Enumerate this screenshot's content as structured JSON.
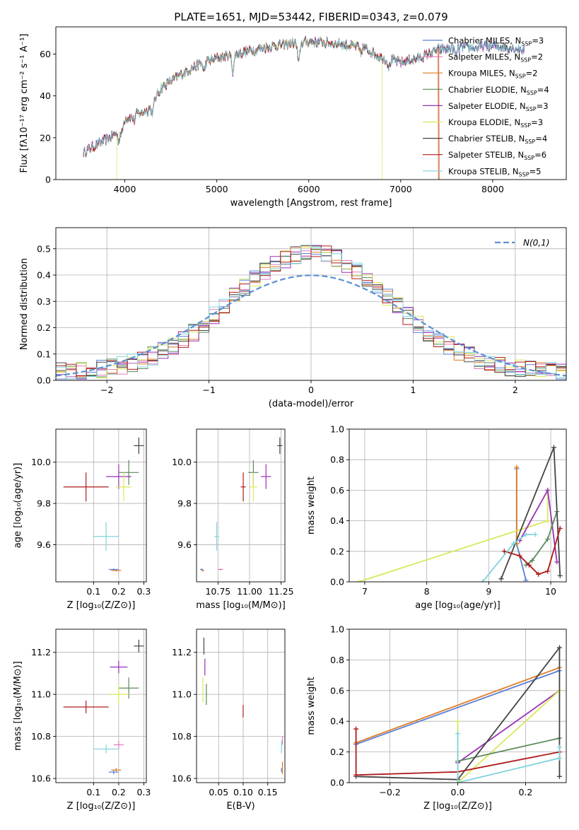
{
  "figure_title": "PLATE=1651, MJD=53442, FIBERID=0343, z=0.079",
  "colors": {
    "Chabrier MILES": "#5b7fd6",
    "Salpeter MILES": "#e07bbb",
    "Kroupa MILES": "#e07a1f",
    "Chabrier ELODIE": "#5a8a5a",
    "Salpeter ELODIE": "#9b2fb5",
    "Kroupa ELODIE": "#d8e85a",
    "Chabrier STELIB": "#444444",
    "Salpeter STELIB": "#b01a1a",
    "Kroupa STELIB": "#7fd3dd",
    "normal": "#5b8fd6"
  },
  "chart_data": [
    {
      "id": "spectrum",
      "type": "line",
      "xlabel": "wavelength [Angstrom, rest frame]",
      "ylabel": "Flux [fλ10⁻¹⁷ erg cm⁻² s⁻¹ A⁻¹]",
      "xlim": [
        3250,
        8800
      ],
      "ylim": [
        0,
        73
      ],
      "xticks": [
        4000,
        5000,
        6000,
        7000,
        8000
      ],
      "yticks": [
        0,
        20,
        40,
        60
      ],
      "grid": false,
      "legend_position": "right",
      "legend": [
        {
          "name": "Chabrier MILES",
          "label": "Chabrier MILES, N",
          "sub": "SSP",
          "n": "=3"
        },
        {
          "name": "Salpeter MILES",
          "label": "Salpeter MILES, N",
          "sub": "SSP",
          "n": "=2"
        },
        {
          "name": "Kroupa MILES",
          "label": "Kroupa MILES, N",
          "sub": "SSP",
          "n": "=2"
        },
        {
          "name": "Chabrier ELODIE",
          "label": "Chabrier ELODIE, N",
          "sub": "SSP",
          "n": "=4"
        },
        {
          "name": "Salpeter ELODIE",
          "label": "Salpeter ELODIE, N",
          "sub": "SSP",
          "n": "=3"
        },
        {
          "name": "Kroupa ELODIE",
          "label": "Kroupa ELODIE, N",
          "sub": "SSP",
          "n": "=3"
        },
        {
          "name": "Chabrier STELIB",
          "label": "Chabrier STELIB, N",
          "sub": "SSP",
          "n": "=4"
        },
        {
          "name": "Salpeter STELIB",
          "label": "Salpeter STELIB, N",
          "sub": "SSP",
          "n": "=6"
        },
        {
          "name": "Kroupa STELIB",
          "label": "Kroupa STELIB, N",
          "sub": "SSP",
          "n": "=5"
        }
      ],
      "continuum": [
        [
          3550,
          13
        ],
        [
          3700,
          17
        ],
        [
          3800,
          19
        ],
        [
          3900,
          22
        ],
        [
          3950,
          26
        ],
        [
          4000,
          29
        ],
        [
          4100,
          31
        ],
        [
          4250,
          33
        ],
        [
          4400,
          44
        ],
        [
          4600,
          50
        ],
        [
          4800,
          55
        ],
        [
          5000,
          58
        ],
        [
          5200,
          60
        ],
        [
          5500,
          63
        ],
        [
          5800,
          65
        ],
        [
          6000,
          66
        ],
        [
          6300,
          65
        ],
        [
          6600,
          63
        ],
        [
          6800,
          58
        ],
        [
          7000,
          56
        ],
        [
          7200,
          58
        ],
        [
          7400,
          62
        ],
        [
          7600,
          63
        ],
        [
          7800,
          63
        ],
        [
          8000,
          64
        ],
        [
          8200,
          63
        ],
        [
          8350,
          62
        ]
      ],
      "dips": [
        [
          3934,
          6
        ],
        [
          3969,
          5
        ],
        [
          4102,
          3
        ],
        [
          4300,
          5
        ],
        [
          4861,
          4
        ],
        [
          5175,
          8
        ],
        [
          5890,
          10
        ],
        [
          6563,
          3
        ],
        [
          6870,
          4
        ],
        [
          7600,
          4
        ]
      ],
      "dropouts": [
        {
          "series": "Kroupa MILES",
          "start": 7410,
          "end": 7440
        },
        {
          "series": "Kroupa ELODIE",
          "start": 6790,
          "end": 6810
        },
        {
          "series": "Kroupa ELODIE",
          "start": 3900,
          "end": 3920
        },
        {
          "series": "Salpeter STELIB",
          "start": 7400,
          "end": 7420
        }
      ]
    },
    {
      "id": "residuals",
      "type": "step",
      "xlabel": "(data-model)/error",
      "ylabel": "Normed distribution",
      "xlim": [
        -2.5,
        2.5
      ],
      "ylim": [
        0,
        0.58
      ],
      "xticks": [
        -2,
        -1,
        0,
        1,
        2
      ],
      "yticks": [
        0.0,
        0.1,
        0.2,
        0.3,
        0.4,
        0.5
      ],
      "grid": true,
      "legend": "N(0,1)",
      "legend_position": "top-right",
      "bin_width": 0.1
    },
    {
      "id": "Z_age",
      "type": "scatter",
      "xlabel": "Z [log₁₀(Z/Z⊙)]",
      "ylabel": "age  [log₁₀(age/yr)]",
      "xlim": [
        -0.05,
        0.31
      ],
      "ylim": [
        9.42,
        10.16
      ],
      "xticks": [
        0.1,
        0.2,
        0.3
      ],
      "yticks": [
        9.6,
        9.8,
        10.0
      ],
      "grid": true,
      "points": [
        {
          "series": "Chabrier STELIB",
          "x": 0.28,
          "y": 10.08,
          "xerr": 0.02,
          "yerr": 0.04
        },
        {
          "series": "Chabrier ELODIE",
          "x": 0.24,
          "y": 9.95,
          "xerr": 0.04,
          "yerr": 0.06
        },
        {
          "series": "Salpeter ELODIE",
          "x": 0.2,
          "y": 9.93,
          "xerr": 0.05,
          "yerr": 0.06
        },
        {
          "series": "Kroupa ELODIE",
          "x": 0.22,
          "y": 9.88,
          "xerr": 0.03,
          "yerr": 0.07
        },
        {
          "series": "Salpeter STELIB",
          "x": 0.07,
          "y": 9.88,
          "xerr": 0.09,
          "yerr": 0.07
        },
        {
          "series": "Kroupa STELIB",
          "x": 0.15,
          "y": 9.64,
          "xerr": 0.05,
          "yerr": 0.07
        },
        {
          "series": "Kroupa MILES",
          "x": 0.19,
          "y": 9.475,
          "xerr": 0.02,
          "yerr": 0.005
        },
        {
          "series": "Chabrier MILES",
          "x": 0.18,
          "y": 9.48,
          "xerr": 0.02,
          "yerr": 0.005
        }
      ]
    },
    {
      "id": "mass_age",
      "type": "scatter",
      "xlabel": "mass [log₁₀(M/M⊙)]",
      "ylabel": "",
      "xlim": [
        10.58,
        11.28
      ],
      "ylim": [
        9.42,
        10.16
      ],
      "xticks": [
        10.75,
        11.0,
        11.25
      ],
      "yticks": [
        9.6,
        9.8,
        10.0
      ],
      "grid": true,
      "points": [
        {
          "series": "Chabrier STELIB",
          "x": 11.24,
          "y": 10.08,
          "xerr": 0.02,
          "yerr": 0.04
        },
        {
          "series": "Chabrier ELODIE",
          "x": 11.03,
          "y": 9.95,
          "xerr": 0.04,
          "yerr": 0.06
        },
        {
          "series": "Salpeter ELODIE",
          "x": 11.13,
          "y": 9.93,
          "xerr": 0.04,
          "yerr": 0.06
        },
        {
          "series": "Kroupa ELODIE",
          "x": 11.03,
          "y": 9.88,
          "xerr": 0.03,
          "yerr": 0.07
        },
        {
          "series": "Salpeter STELIB",
          "x": 10.95,
          "y": 9.88,
          "xerr": 0.02,
          "yerr": 0.07
        },
        {
          "series": "Kroupa STELIB",
          "x": 10.74,
          "y": 9.64,
          "xerr": 0.02,
          "yerr": 0.07
        },
        {
          "series": "Salpeter MILES",
          "x": 10.77,
          "y": 9.48,
          "xerr": 0.02,
          "yerr": 0.005
        },
        {
          "series": "Kroupa MILES",
          "x": 10.63,
          "y": 9.475,
          "xerr": 0.01,
          "yerr": 0.005
        },
        {
          "series": "Chabrier MILES",
          "x": 10.62,
          "y": 9.48,
          "xerr": 0.01,
          "yerr": 0.005
        }
      ]
    },
    {
      "id": "age_weight",
      "type": "line",
      "xlabel": "age  [log₁₀(age/yr)]",
      "ylabel": "mass weight",
      "xlim": [
        6.75,
        10.25
      ],
      "ylim": [
        0,
        1.0
      ],
      "xticks": [
        7,
        8,
        9,
        10
      ],
      "yticks": [
        0.0,
        0.2,
        0.4,
        0.6,
        0.8,
        1.0
      ],
      "grid": true,
      "series": [
        {
          "name": "Chabrier MILES",
          "points": [
            [
              9.45,
              0.74
            ],
            [
              9.45,
              0.25
            ],
            [
              9.6,
              0.01
            ]
          ]
        },
        {
          "name": "Kroupa MILES",
          "points": [
            [
              9.45,
              0.75
            ],
            [
              9.45,
              0.25
            ]
          ]
        },
        {
          "name": "Kroupa ELODIE",
          "points": [
            [
              6.9,
              0.0
            ],
            [
              9.95,
              0.4
            ],
            [
              9.95,
              0.6
            ]
          ]
        },
        {
          "name": "Salpeter ELODIE",
          "points": [
            [
              9.5,
              0.27
            ],
            [
              9.95,
              0.6
            ],
            [
              10.1,
              0.13
            ]
          ]
        },
        {
          "name": "Chabrier ELODIE",
          "points": [
            [
              9.6,
              0.11
            ],
            [
              9.7,
              0.14
            ],
            [
              9.95,
              0.28
            ],
            [
              10.1,
              0.46
            ]
          ]
        },
        {
          "name": "Chabrier STELIB",
          "points": [
            [
              9.2,
              0.02
            ],
            [
              10.05,
              0.88
            ],
            [
              10.15,
              0.04
            ]
          ]
        },
        {
          "name": "Salpeter STELIB",
          "points": [
            [
              9.25,
              0.2
            ],
            [
              9.5,
              0.17
            ],
            [
              9.65,
              0.11
            ],
            [
              9.8,
              0.05
            ],
            [
              9.95,
              0.07
            ],
            [
              10.15,
              0.35
            ]
          ]
        },
        {
          "name": "Kroupa STELIB",
          "points": [
            [
              8.9,
              0.0
            ],
            [
              9.4,
              0.25
            ],
            [
              9.6,
              0.31
            ],
            [
              9.75,
              0.31
            ]
          ]
        }
      ]
    },
    {
      "id": "Z_mass",
      "type": "scatter",
      "xlabel": "Z [log₁₀(Z/Z⊙)]",
      "ylabel": "mass [log₁₀(M/M⊙)]",
      "xlim": [
        -0.05,
        0.31
      ],
      "ylim": [
        10.58,
        11.31
      ],
      "xticks": [
        0.1,
        0.2,
        0.3
      ],
      "yticks": [
        10.6,
        10.8,
        11.0,
        11.2
      ],
      "grid": true,
      "points": [
        {
          "series": "Chabrier STELIB",
          "x": 0.28,
          "y": 11.23,
          "xerr": 0.02,
          "yerr": 0.03
        },
        {
          "series": "Salpeter ELODIE",
          "x": 0.2,
          "y": 11.13,
          "xerr": 0.035,
          "yerr": 0.03
        },
        {
          "series": "Chabrier ELODIE",
          "x": 0.24,
          "y": 11.03,
          "xerr": 0.04,
          "yerr": 0.05
        },
        {
          "series": "Kroupa ELODIE",
          "x": 0.2,
          "y": 11.0,
          "xerr": 0.04,
          "yerr": 0.05
        },
        {
          "series": "Salpeter STELIB",
          "x": 0.07,
          "y": 10.94,
          "xerr": 0.09,
          "yerr": 0.03
        },
        {
          "series": "Salpeter MILES",
          "x": 0.2,
          "y": 10.76,
          "xerr": 0.02,
          "yerr": 0.02
        },
        {
          "series": "Kroupa STELIB",
          "x": 0.15,
          "y": 10.74,
          "xerr": 0.05,
          "yerr": 0.02
        },
        {
          "series": "Kroupa MILES",
          "x": 0.19,
          "y": 10.64,
          "xerr": 0.02,
          "yerr": 0.01
        },
        {
          "series": "Chabrier MILES",
          "x": 0.18,
          "y": 10.63,
          "xerr": 0.02,
          "yerr": 0.01
        }
      ]
    },
    {
      "id": "ebv_mass",
      "type": "scatter",
      "xlabel": "E(B-V)",
      "ylabel": "",
      "xlim": [
        0.005,
        0.185
      ],
      "ylim": [
        10.58,
        11.31
      ],
      "xticks": [
        0.05,
        0.1,
        0.15
      ],
      "yticks": [
        10.6,
        10.8,
        11.0,
        11.2
      ],
      "grid": true,
      "points": [
        {
          "series": "Chabrier STELIB",
          "x": 0.02,
          "y": 11.23,
          "xerr": 0.0,
          "yerr": 0.04
        },
        {
          "series": "Salpeter ELODIE",
          "x": 0.022,
          "y": 11.13,
          "xerr": 0.0,
          "yerr": 0.04
        },
        {
          "series": "Kroupa ELODIE",
          "x": 0.018,
          "y": 11.02,
          "xerr": 0.0,
          "yerr": 0.06
        },
        {
          "series": "Chabrier ELODIE",
          "x": 0.025,
          "y": 11.0,
          "xerr": 0.0,
          "yerr": 0.05
        },
        {
          "series": "Salpeter STELIB",
          "x": 0.1,
          "y": 10.92,
          "xerr": 0.0,
          "yerr": 0.03
        },
        {
          "series": "Salpeter MILES",
          "x": 0.18,
          "y": 10.78,
          "xerr": 0.0,
          "yerr": 0.02
        },
        {
          "series": "Kroupa STELIB",
          "x": 0.178,
          "y": 10.75,
          "xerr": 0.0,
          "yerr": 0.03
        },
        {
          "series": "Kroupa MILES",
          "x": 0.18,
          "y": 10.65,
          "xerr": 0.0,
          "yerr": 0.03
        },
        {
          "series": "Chabrier MILES",
          "x": 0.178,
          "y": 10.64,
          "xerr": 0.0,
          "yerr": 0.01
        }
      ]
    },
    {
      "id": "Z_weight",
      "type": "line",
      "xlabel": "Z [log₁₀(Z/Z⊙)]",
      "ylabel": "mass weight",
      "xlim": [
        -0.32,
        0.32
      ],
      "ylim": [
        0,
        1.0
      ],
      "xticks": [
        -0.2,
        0.0,
        0.2
      ],
      "yticks": [
        0.0,
        0.2,
        0.4,
        0.6,
        0.8,
        1.0
      ],
      "grid": true,
      "series": [
        {
          "name": "Chabrier MILES",
          "points": [
            [
              -0.3,
              0.25
            ],
            [
              0.3,
              0.73
            ]
          ]
        },
        {
          "name": "Kroupa MILES",
          "points": [
            [
              -0.3,
              0.26
            ],
            [
              0.3,
              0.75
            ]
          ]
        },
        {
          "name": "Salpeter ELODIE",
          "points": [
            [
              0.0,
              0.13
            ],
            [
              0.3,
              0.6
            ]
          ]
        },
        {
          "name": "Kroupa ELODIE",
          "points": [
            [
              0.0,
              0.4
            ],
            [
              0.0,
              0.0
            ],
            [
              0.3,
              0.6
            ]
          ]
        },
        {
          "name": "Chabrier ELODIE",
          "points": [
            [
              0.0,
              0.14
            ],
            [
              0.3,
              0.29
            ]
          ]
        },
        {
          "name": "Chabrier STELIB",
          "points": [
            [
              -0.3,
              0.04
            ],
            [
              0.0,
              0.02
            ],
            [
              0.3,
              0.88
            ],
            [
              0.3,
              0.04
            ]
          ]
        },
        {
          "name": "Salpeter STELIB",
          "points": [
            [
              -0.3,
              0.35
            ],
            [
              -0.3,
              0.05
            ],
            [
              0.0,
              0.07
            ],
            [
              0.3,
              0.2
            ]
          ]
        },
        {
          "name": "Kroupa STELIB",
          "points": [
            [
              0.0,
              0.32
            ],
            [
              0.0,
              0.0
            ],
            [
              0.3,
              0.16
            ],
            [
              0.3,
              0.23
            ]
          ]
        }
      ]
    }
  ]
}
